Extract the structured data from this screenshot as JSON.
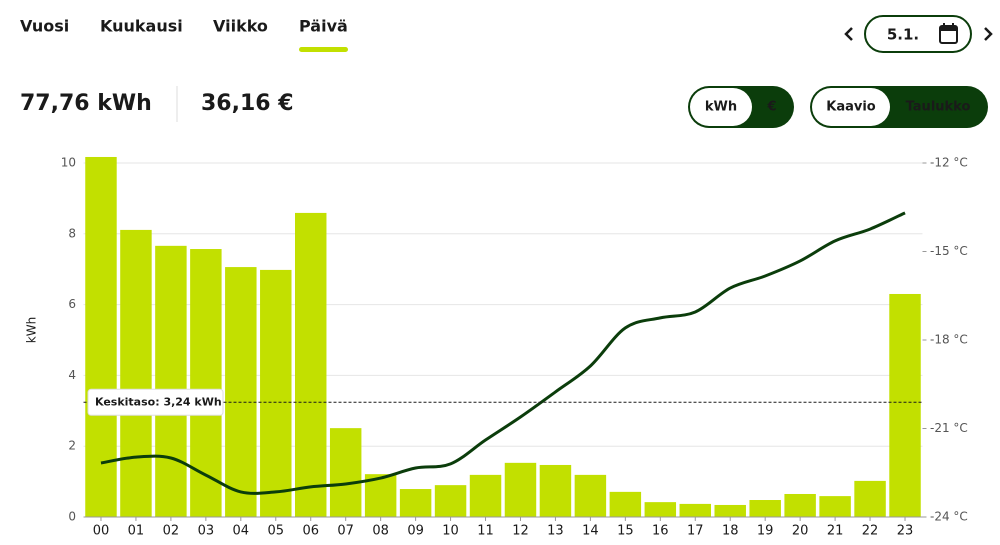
{
  "ui": {
    "tabs": [
      "Vuosi",
      "Kuukausi",
      "Viikko",
      "Päivä"
    ],
    "active_tab": 3,
    "date": "5.1.",
    "total_energy": "77,76 kWh",
    "total_cost": "36,16 €",
    "unit_toggle": [
      "kWh",
      "€"
    ],
    "unit_active": 0,
    "view_toggle": [
      "Kaavio",
      "Taulukko"
    ],
    "view_active": 0
  },
  "chart_data": {
    "type": "bar",
    "categories": [
      "00",
      "01",
      "02",
      "03",
      "04",
      "05",
      "06",
      "07",
      "08",
      "09",
      "10",
      "11",
      "12",
      "13",
      "14",
      "15",
      "16",
      "17",
      "18",
      "19",
      "20",
      "21",
      "22",
      "23"
    ],
    "y_label": "kWh",
    "ylim": [
      0,
      10
    ],
    "yticks": [
      0,
      2,
      4,
      6,
      8,
      10
    ],
    "y2lim": [
      -24,
      -12
    ],
    "y2ticks": [
      {
        "value": -12,
        "label": "-12 °C"
      },
      {
        "value": -15,
        "label": "-15 °C"
      },
      {
        "value": -18,
        "label": "-18 °C"
      },
      {
        "value": -21,
        "label": "-21 °C"
      },
      {
        "value": -24,
        "label": "-24 °C"
      }
    ],
    "grid": true,
    "series": [
      {
        "type": "bar",
        "color": "#c2e000",
        "values": [
          10.17,
          8.11,
          7.66,
          7.57,
          7.06,
          6.98,
          8.59,
          2.51,
          1.21,
          0.79,
          0.9,
          1.19,
          1.53,
          1.47,
          1.19,
          0.71,
          0.42,
          0.37,
          0.34,
          0.48,
          0.65,
          0.59,
          1.02,
          6.3
        ]
      },
      {
        "type": "line",
        "color": "#0b3d0b",
        "axis": "y2",
        "values": [
          -22.17,
          -21.97,
          -22.0,
          -22.58,
          -23.15,
          -23.15,
          -22.98,
          -22.88,
          -22.68,
          -22.34,
          -22.2,
          -21.39,
          -20.61,
          -19.76,
          -18.88,
          -17.59,
          -17.25,
          -17.05,
          -16.24,
          -15.83,
          -15.32,
          -14.64,
          -14.24,
          -13.69
        ]
      }
    ],
    "average": 3.24,
    "average_label": "Keskitaso: 3,24 kWh"
  }
}
